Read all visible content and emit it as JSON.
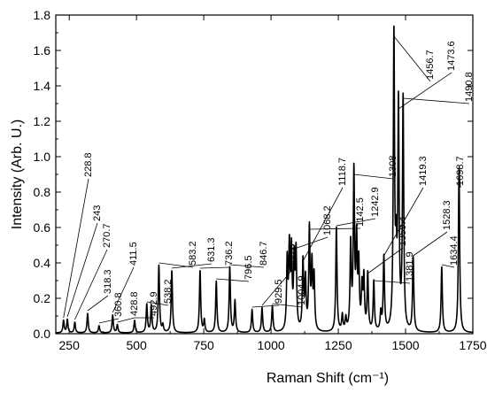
{
  "chart_data": {
    "type": "line",
    "xlabel": "Raman Shift (cm⁻¹)",
    "ylabel": "Intensity (Arb. U.)",
    "xlim": [
      200,
      1750
    ],
    "ylim": [
      0,
      1.8
    ],
    "x_ticks": [
      "250",
      "500",
      "750",
      "1000",
      "1250",
      "1500",
      "1750"
    ],
    "y_ticks": [
      "0.0",
      "0.2",
      "0.4",
      "0.6",
      "0.8",
      "1.0",
      "1.2",
      "1.4",
      "1.6",
      "1.8"
    ],
    "grid": false,
    "line_color": "#000000",
    "peaks": [
      {
        "x": 228.8,
        "y": 0.07,
        "label": "228.8"
      },
      {
        "x": 243.0,
        "y": 0.075,
        "label": "243"
      },
      {
        "x": 270.7,
        "y": 0.06,
        "label": "270.7"
      },
      {
        "x": 318.3,
        "y": 0.11,
        "label": "318.3"
      },
      {
        "x": 360.8,
        "y": 0.04,
        "label": "360.8"
      },
      {
        "x": 411.5,
        "y": 0.1,
        "label": "411.5"
      },
      {
        "x": 428.8,
        "y": 0.045,
        "label": "428.8"
      },
      {
        "x": 492.9,
        "y": 0.07,
        "label": "492.9"
      },
      {
        "x": 538.2,
        "y": 0.16,
        "label": "538.2"
      },
      {
        "x": 583.2,
        "y": 0.38,
        "label": "583.2"
      },
      {
        "x": 631.3,
        "y": 0.35,
        "label": "631.3"
      },
      {
        "x": 736.2,
        "y": 0.35,
        "label": "736.2"
      },
      {
        "x": 796.5,
        "y": 0.29,
        "label": "796.5"
      },
      {
        "x": 846.7,
        "y": 0.37,
        "label": "846.7"
      },
      {
        "x": 929.5,
        "y": 0.13,
        "label": "929.5"
      },
      {
        "x": 966.6,
        "y": 0.14,
        "label": "966.6"
      },
      {
        "x": 1004.9,
        "y": 0.15,
        "label": "1004.9"
      },
      {
        "x": 1068.2,
        "y": 0.45,
        "label": "1068.2"
      },
      {
        "x": 1118.7,
        "y": 0.39,
        "label": "1118.7"
      },
      {
        "x": 1142.5,
        "y": 0.57,
        "label": "1142.5"
      },
      {
        "x": 1242.9,
        "y": 0.59,
        "label": "1242.9"
      },
      {
        "x": 1308.0,
        "y": 0.88,
        "label": "1308"
      },
      {
        "x": 1359.4,
        "y": 0.32,
        "label": "1359.4"
      },
      {
        "x": 1381.9,
        "y": 0.28,
        "label": "1381.9"
      },
      {
        "x": 1419.3,
        "y": 0.42,
        "label": "1419.3"
      },
      {
        "x": 1456.7,
        "y": 1.66,
        "label": "1456.7"
      },
      {
        "x": 1473.6,
        "y": 1.25,
        "label": "1473.6"
      },
      {
        "x": 1490.8,
        "y": 1.31,
        "label": "1490.8"
      },
      {
        "x": 1528.3,
        "y": 0.42,
        "label": "1528.3"
      },
      {
        "x": 1634.4,
        "y": 0.37,
        "label": "1634.4"
      },
      {
        "x": 1698.7,
        "y": 0.93,
        "label": "1698.7"
      }
    ],
    "extra_peaks": [
      {
        "x": 555,
        "y": 0.15
      },
      {
        "x": 598,
        "y": 0.04
      },
      {
        "x": 752,
        "y": 0.07
      },
      {
        "x": 866,
        "y": 0.18
      },
      {
        "x": 1060,
        "y": 0.39
      },
      {
        "x": 1076,
        "y": 0.43
      },
      {
        "x": 1086,
        "y": 0.38
      },
      {
        "x": 1093,
        "y": 0.43
      },
      {
        "x": 1128,
        "y": 0.28
      },
      {
        "x": 1152,
        "y": 0.36
      },
      {
        "x": 1160,
        "y": 0.3
      },
      {
        "x": 1265,
        "y": 0.09
      },
      {
        "x": 1278,
        "y": 0.07
      },
      {
        "x": 1296,
        "y": 0.48
      },
      {
        "x": 1318,
        "y": 0.49
      },
      {
        "x": 1326,
        "y": 0.36
      },
      {
        "x": 1338,
        "y": 0.23
      },
      {
        "x": 1345,
        "y": 0.29
      },
      {
        "x": 1408,
        "y": 0.1
      },
      {
        "x": 1465,
        "y": 0.36
      }
    ]
  }
}
